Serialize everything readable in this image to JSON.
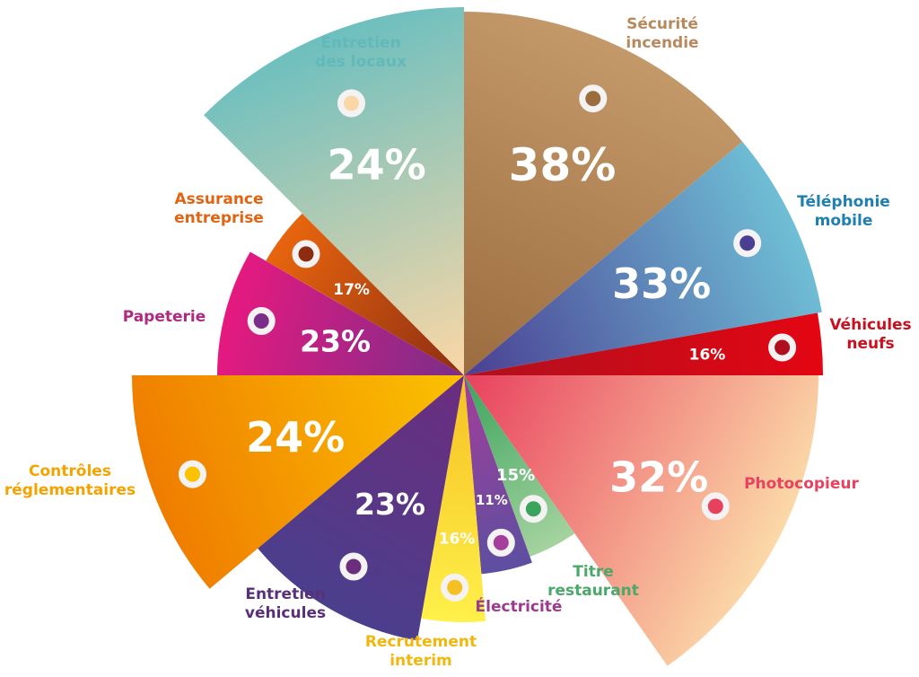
{
  "chart_data": {
    "type": "pie",
    "title": "",
    "unit": "%",
    "slices": [
      {
        "label": [
          "Sécurité",
          "incendie"
        ],
        "value": 38,
        "value_label": "38%",
        "color_a": "#c4996a",
        "color_b": "#9b6c3f",
        "label_color": "#b8895d"
      },
      {
        "label": [
          "Téléphonie",
          "mobile"
        ],
        "value": 33,
        "value_label": "33%",
        "color_a": "#6fbfd6",
        "color_b": "#4a3f93",
        "label_color": "#1f7fb0"
      },
      {
        "label": [
          "Véhicules",
          "neufs"
        ],
        "value": 16,
        "value_label": "16%",
        "color_a": "#e30613",
        "color_b": "#b0101e",
        "label_color": "#c8101e"
      },
      {
        "label": [
          "Photocopieur"
        ],
        "value": 32,
        "value_label": "32%",
        "color_a": "#fbd9a8",
        "color_b": "#e8415e",
        "label_color": "#e84260"
      },
      {
        "label": [
          "Titre",
          "restaurant"
        ],
        "value": 15,
        "value_label": "15%",
        "color_a": "#a5d3a0",
        "color_b": "#3aa35c",
        "label_color": "#4aa868"
      },
      {
        "label": [
          "Électricité"
        ],
        "value": 11,
        "value_label": "11%",
        "color_a": "#5d4fa0",
        "color_b": "#a43e9a",
        "label_color": "#9b3b8f"
      },
      {
        "label": [
          "Recrutement",
          "interim"
        ],
        "value": 16,
        "value_label": "16%",
        "color_a": "#fff04a",
        "color_b": "#f5c022",
        "label_color": "#f0b70d"
      },
      {
        "label": [
          "Entretien",
          "véhicules"
        ],
        "value": 23,
        "value_label": "23%",
        "color_a": "#4a3f8c",
        "color_b": "#6c2d7e",
        "label_color": "#5a2f7a"
      },
      {
        "label": [
          "Contrôles",
          "réglementaires"
        ],
        "value": 24,
        "value_label": "24%",
        "color_a": "#ef7d00",
        "color_b": "#fbc200",
        "label_color": "#f4a300"
      },
      {
        "label": [
          "Papeterie"
        ],
        "value": 23,
        "value_label": "23%",
        "color_a": "#e6197f",
        "color_b": "#7a2e8a",
        "label_color": "#b02a82"
      },
      {
        "label": [
          "Assurance",
          "entreprise"
        ],
        "value": 17,
        "value_label": "17%",
        "color_a": "#e8650e",
        "color_b": "#8c2d12",
        "label_color": "#e06411"
      },
      {
        "label": [
          "Entretien",
          "des locaux"
        ],
        "value": 24,
        "value_label": "24%",
        "color_a": "#6dbfbf",
        "color_b": "#fbd7a6",
        "label_color": "#62b9b9"
      }
    ]
  }
}
